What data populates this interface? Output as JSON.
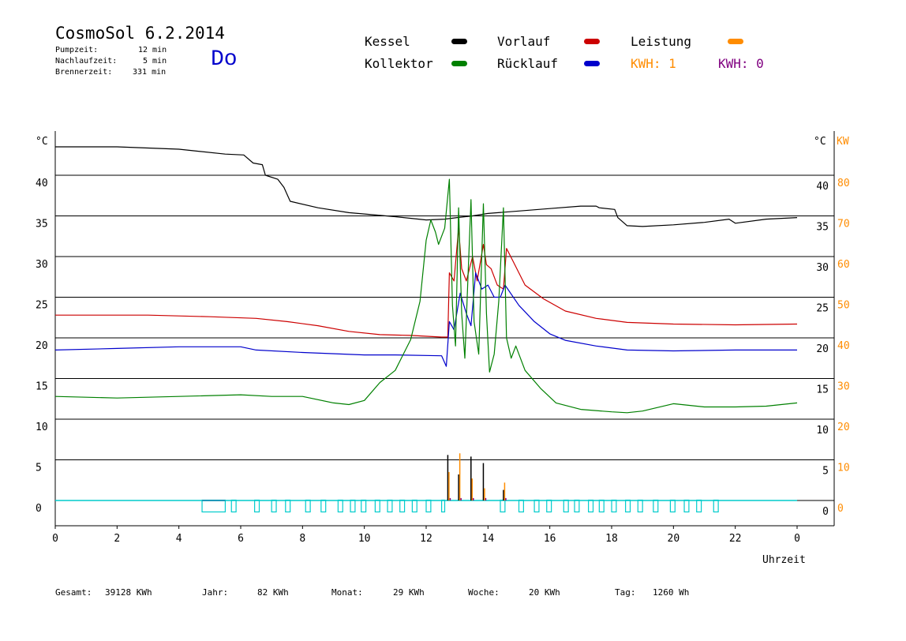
{
  "header": {
    "title": "CosmoSol 6.2.2014",
    "day": "Do",
    "stats": [
      {
        "label": "Pumpzeit:",
        "value": "12 min"
      },
      {
        "label": "Nachlaufzeit:",
        "value": "5 min"
      },
      {
        "label": "Brennerzeit:",
        "value": "331 min"
      }
    ]
  },
  "legend": {
    "kessel": "Kessel",
    "kollektor": "Kollektor",
    "vorlauf": "Vorlauf",
    "ruecklauf": "Rücklauf",
    "leistung": "Leistung",
    "kwh1": "KWH: 1",
    "kwh2": "KWH: 0"
  },
  "colors": {
    "kessel": "#000000",
    "kollektor": "#008000",
    "vorlauf": "#cc0000",
    "ruecklauf": "#0000cc",
    "leistung": "#ff8c00",
    "kwh2": "#800080",
    "pump": "#00cccc"
  },
  "footer": [
    {
      "label": "Gesamt:",
      "value": "39128 KWh"
    },
    {
      "label": "Jahr:",
      "value": "82 KWh"
    },
    {
      "label": "Monat:",
      "value": "29 KWh"
    },
    {
      "label": "Woche:",
      "value": "20 KWh"
    },
    {
      "label": "Tag:",
      "value": "1260 Wh"
    }
  ],
  "chart_data": {
    "type": "line",
    "xlabel": "Uhrzeit",
    "ylabel_left": "°C",
    "ylabel_right": "°C",
    "ylabel_power": "KW",
    "x_ticks": [
      "0",
      "2",
      "4",
      "6",
      "8",
      "10",
      "12",
      "14",
      "16",
      "18",
      "20",
      "22",
      "0"
    ],
    "y_ticks_left": [
      "40",
      "35",
      "30",
      "25",
      "20",
      "15",
      "10",
      "5",
      "0"
    ],
    "y_ticks_right": [
      "40",
      "35",
      "30",
      "25",
      "20",
      "15",
      "10",
      "5",
      "0"
    ],
    "y_ticks_power": [
      "80",
      "70",
      "60",
      "50",
      "40",
      "30",
      "20",
      "10",
      "0"
    ],
    "xlim": [
      0,
      24
    ],
    "ylim": [
      0,
      45
    ],
    "grid": true,
    "series": [
      {
        "name": "Kessel",
        "color": "#000000",
        "points": [
          [
            0,
            43.5
          ],
          [
            2,
            43.5
          ],
          [
            4,
            43.2
          ],
          [
            5.5,
            42.6
          ],
          [
            6.1,
            42.5
          ],
          [
            6.4,
            41.5
          ],
          [
            6.7,
            41.3
          ],
          [
            6.8,
            40
          ],
          [
            7.2,
            39.5
          ],
          [
            7.4,
            38.5
          ],
          [
            7.6,
            36.8
          ],
          [
            8.5,
            36
          ],
          [
            9.5,
            35.4
          ],
          [
            11,
            34.9
          ],
          [
            12,
            34.5
          ],
          [
            12.6,
            34.6
          ],
          [
            13,
            34.8
          ],
          [
            13.5,
            35
          ],
          [
            14,
            35.3
          ],
          [
            15,
            35.6
          ],
          [
            16,
            35.9
          ],
          [
            17,
            36.2
          ],
          [
            17.5,
            36.2
          ],
          [
            17.6,
            36
          ],
          [
            18.1,
            35.8
          ],
          [
            18.2,
            34.8
          ],
          [
            18.5,
            33.8
          ],
          [
            19,
            33.7
          ],
          [
            20,
            33.9
          ],
          [
            21,
            34.2
          ],
          [
            21.8,
            34.6
          ],
          [
            22,
            34.1
          ],
          [
            23,
            34.6
          ],
          [
            24,
            34.8
          ]
        ]
      },
      {
        "name": "Vorlauf",
        "color": "#cc0000",
        "points": [
          [
            0,
            22.8
          ],
          [
            3,
            22.8
          ],
          [
            5,
            22.6
          ],
          [
            6.5,
            22.4
          ],
          [
            7.5,
            22
          ],
          [
            8.5,
            21.5
          ],
          [
            9.5,
            20.8
          ],
          [
            10.5,
            20.4
          ],
          [
            11.5,
            20.3
          ],
          [
            12.5,
            20.1
          ],
          [
            12.7,
            20.1
          ],
          [
            12.75,
            28
          ],
          [
            12.9,
            27
          ],
          [
            13.05,
            33.5
          ],
          [
            13.15,
            28.5
          ],
          [
            13.3,
            27
          ],
          [
            13.5,
            30
          ],
          [
            13.65,
            27
          ],
          [
            13.85,
            31.5
          ],
          [
            13.95,
            29
          ],
          [
            14.1,
            28.5
          ],
          [
            14.3,
            26.5
          ],
          [
            14.5,
            26
          ],
          [
            14.6,
            31
          ],
          [
            14.8,
            29.5
          ],
          [
            15.2,
            26.5
          ],
          [
            15.8,
            24.8
          ],
          [
            16.5,
            23.3
          ],
          [
            17.5,
            22.4
          ],
          [
            18.5,
            21.9
          ],
          [
            20,
            21.7
          ],
          [
            22,
            21.6
          ],
          [
            24,
            21.7
          ]
        ]
      },
      {
        "name": "Rücklauf",
        "color": "#0000cc",
        "points": [
          [
            0,
            18.5
          ],
          [
            2,
            18.7
          ],
          [
            4,
            18.9
          ],
          [
            6,
            18.9
          ],
          [
            6.5,
            18.5
          ],
          [
            8,
            18.2
          ],
          [
            10,
            17.9
          ],
          [
            11,
            17.9
          ],
          [
            12.5,
            17.8
          ],
          [
            12.65,
            16.5
          ],
          [
            12.75,
            22
          ],
          [
            12.9,
            21
          ],
          [
            13.1,
            25.5
          ],
          [
            13.3,
            23
          ],
          [
            13.45,
            21.5
          ],
          [
            13.6,
            28
          ],
          [
            13.8,
            26
          ],
          [
            14,
            26.5
          ],
          [
            14.2,
            25
          ],
          [
            14.4,
            25
          ],
          [
            14.55,
            26.5
          ],
          [
            15,
            24
          ],
          [
            15.5,
            22
          ],
          [
            16,
            20.5
          ],
          [
            16.5,
            19.7
          ],
          [
            17.5,
            19
          ],
          [
            18.5,
            18.5
          ],
          [
            20,
            18.4
          ],
          [
            22,
            18.5
          ],
          [
            24,
            18.5
          ]
        ]
      },
      {
        "name": "Kollektor",
        "color": "#008000",
        "points": [
          [
            0,
            12.8
          ],
          [
            2,
            12.6
          ],
          [
            4,
            12.8
          ],
          [
            6,
            13
          ],
          [
            7,
            12.8
          ],
          [
            8,
            12.8
          ],
          [
            9,
            12
          ],
          [
            9.5,
            11.8
          ],
          [
            10,
            12.3
          ],
          [
            10.5,
            14.5
          ],
          [
            11,
            16
          ],
          [
            11.5,
            19.8
          ],
          [
            11.8,
            24.5
          ],
          [
            12,
            32
          ],
          [
            12.15,
            34.5
          ],
          [
            12.3,
            33
          ],
          [
            12.4,
            31.5
          ],
          [
            12.6,
            33.5
          ],
          [
            12.75,
            39.5
          ],
          [
            12.85,
            24
          ],
          [
            12.95,
            19
          ],
          [
            13.05,
            36
          ],
          [
            13.15,
            23
          ],
          [
            13.25,
            17.5
          ],
          [
            13.45,
            37
          ],
          [
            13.55,
            22
          ],
          [
            13.7,
            18
          ],
          [
            13.85,
            36.5
          ],
          [
            13.95,
            23
          ],
          [
            14.05,
            15.8
          ],
          [
            14.2,
            18
          ],
          [
            14.35,
            24.5
          ],
          [
            14.5,
            36
          ],
          [
            14.6,
            20
          ],
          [
            14.75,
            17.5
          ],
          [
            14.9,
            19
          ],
          [
            15.2,
            16
          ],
          [
            15.7,
            13.8
          ],
          [
            16.2,
            12
          ],
          [
            17,
            11.2
          ],
          [
            18,
            10.9
          ],
          [
            18.5,
            10.8
          ],
          [
            19,
            11
          ],
          [
            20,
            11.9
          ],
          [
            21,
            11.5
          ],
          [
            22,
            11.5
          ],
          [
            23,
            11.6
          ],
          [
            24,
            12
          ]
        ]
      }
    ],
    "power_spikes": [
      {
        "x": 12.7,
        "kessel": 5.6,
        "leistung": 3.5
      },
      {
        "x": 13.05,
        "kessel": 3.2,
        "leistung": 5.8
      },
      {
        "x": 13.45,
        "kessel": 5.4,
        "leistung": 2.7
      },
      {
        "x": 13.85,
        "kessel": 4.6,
        "leistung": 1.5
      },
      {
        "x": 14.5,
        "kessel": 1.3,
        "leistung": 2.2
      }
    ],
    "pump_intervals": [
      [
        4.75,
        5.5
      ],
      [
        5.7,
        5.85
      ],
      [
        6.45,
        6.6
      ],
      [
        7,
        7.15
      ],
      [
        7.45,
        7.6
      ],
      [
        8.1,
        8.25
      ],
      [
        8.6,
        8.75
      ],
      [
        9.15,
        9.3
      ],
      [
        9.55,
        9.7
      ],
      [
        9.9,
        10.05
      ],
      [
        10.35,
        10.5
      ],
      [
        10.75,
        10.9
      ],
      [
        11.15,
        11.3
      ],
      [
        11.55,
        11.7
      ],
      [
        12,
        12.15
      ],
      [
        12.5,
        12.6
      ],
      [
        14.4,
        14.55
      ],
      [
        15,
        15.15
      ],
      [
        15.5,
        15.65
      ],
      [
        15.9,
        16.05
      ],
      [
        16.45,
        16.6
      ],
      [
        16.8,
        16.95
      ],
      [
        17.25,
        17.4
      ],
      [
        17.6,
        17.75
      ],
      [
        18,
        18.15
      ],
      [
        18.45,
        18.6
      ],
      [
        18.85,
        19
      ],
      [
        19.35,
        19.5
      ],
      [
        19.9,
        20.05
      ],
      [
        20.35,
        20.5
      ],
      [
        20.75,
        20.9
      ],
      [
        21.3,
        21.45
      ]
    ]
  }
}
